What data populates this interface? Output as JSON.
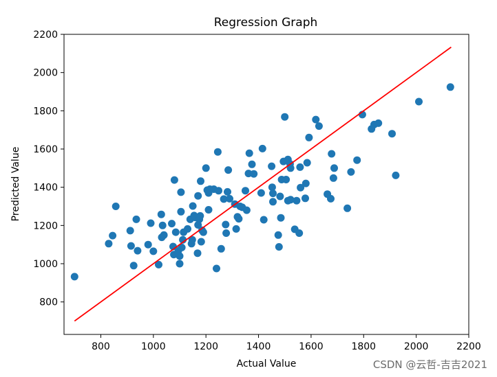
{
  "chart_data": {
    "type": "scatter",
    "title": "Regression Graph",
    "xlabel": "Actual Value",
    "ylabel": "Predicted Value",
    "xlim": [
      660,
      2200
    ],
    "ylim": [
      630,
      2200
    ],
    "xticks": [
      800,
      1000,
      1200,
      1400,
      1600,
      1800,
      2000,
      2200
    ],
    "yticks": [
      800,
      1000,
      1200,
      1400,
      1600,
      1800,
      2000,
      2200
    ],
    "grid": false,
    "point_color": "#1f77b4",
    "line_color": "#ff0000",
    "regression_line": {
      "x": [
        700,
        2133
      ],
      "y": [
        700,
        2133
      ]
    },
    "points": [
      [
        700,
        932
      ],
      [
        830,
        1105
      ],
      [
        845,
        1147
      ],
      [
        857,
        1300
      ],
      [
        912,
        1173
      ],
      [
        915,
        1093
      ],
      [
        925,
        990
      ],
      [
        935,
        1232
      ],
      [
        940,
        1068
      ],
      [
        980,
        1100
      ],
      [
        990,
        1212
      ],
      [
        1000,
        1065
      ],
      [
        1020,
        995
      ],
      [
        1030,
        1258
      ],
      [
        1032,
        1138
      ],
      [
        1035,
        1200
      ],
      [
        1040,
        1150
      ],
      [
        1070,
        1210
      ],
      [
        1075,
        1090
      ],
      [
        1078,
        1048
      ],
      [
        1080,
        1438
      ],
      [
        1085,
        1165
      ],
      [
        1095,
        1068
      ],
      [
        1100,
        1000
      ],
      [
        1100,
        1040
      ],
      [
        1105,
        1272
      ],
      [
        1105,
        1374
      ],
      [
        1108,
        1085
      ],
      [
        1112,
        1125
      ],
      [
        1115,
        1165
      ],
      [
        1130,
        1182
      ],
      [
        1140,
        1232
      ],
      [
        1145,
        1105
      ],
      [
        1148,
        1125
      ],
      [
        1150,
        1302
      ],
      [
        1155,
        1252
      ],
      [
        1160,
        1242
      ],
      [
        1168,
        1055
      ],
      [
        1170,
        1203
      ],
      [
        1170,
        1355
      ],
      [
        1175,
        1232
      ],
      [
        1178,
        1250
      ],
      [
        1180,
        1432
      ],
      [
        1182,
        1115
      ],
      [
        1185,
        1175
      ],
      [
        1190,
        1165
      ],
      [
        1200,
        1500
      ],
      [
        1205,
        1385
      ],
      [
        1210,
        1370
      ],
      [
        1210,
        1282
      ],
      [
        1215,
        1390
      ],
      [
        1230,
        1390
      ],
      [
        1240,
        975
      ],
      [
        1245,
        1585
      ],
      [
        1248,
        1382
      ],
      [
        1258,
        1078
      ],
      [
        1268,
        1338
      ],
      [
        1275,
        1205
      ],
      [
        1277,
        1160
      ],
      [
        1282,
        1376
      ],
      [
        1285,
        1490
      ],
      [
        1290,
        1340
      ],
      [
        1310,
        1312
      ],
      [
        1315,
        1182
      ],
      [
        1320,
        1245
      ],
      [
        1325,
        1235
      ],
      [
        1330,
        1300
      ],
      [
        1338,
        1295
      ],
      [
        1350,
        1382
      ],
      [
        1355,
        1280
      ],
      [
        1362,
        1472
      ],
      [
        1365,
        1578
      ],
      [
        1375,
        1520
      ],
      [
        1382,
        1470
      ],
      [
        1410,
        1370
      ],
      [
        1415,
        1602
      ],
      [
        1420,
        1230
      ],
      [
        1450,
        1510
      ],
      [
        1452,
        1400
      ],
      [
        1455,
        1368
      ],
      [
        1455,
        1324
      ],
      [
        1475,
        1150
      ],
      [
        1478,
        1088
      ],
      [
        1482,
        1352
      ],
      [
        1485,
        1240
      ],
      [
        1488,
        1440
      ],
      [
        1495,
        1535
      ],
      [
        1500,
        1768
      ],
      [
        1505,
        1440
      ],
      [
        1512,
        1330
      ],
      [
        1512,
        1545
      ],
      [
        1520,
        1522
      ],
      [
        1522,
        1500
      ],
      [
        1522,
        1335
      ],
      [
        1538,
        1180
      ],
      [
        1545,
        1330
      ],
      [
        1555,
        1160
      ],
      [
        1558,
        1505
      ],
      [
        1560,
        1398
      ],
      [
        1578,
        1342
      ],
      [
        1580,
        1420
      ],
      [
        1585,
        1528
      ],
      [
        1592,
        1660
      ],
      [
        1618,
        1754
      ],
      [
        1630,
        1720
      ],
      [
        1662,
        1364
      ],
      [
        1675,
        1340
      ],
      [
        1678,
        1575
      ],
      [
        1685,
        1448
      ],
      [
        1688,
        1500
      ],
      [
        1738,
        1290
      ],
      [
        1752,
        1480
      ],
      [
        1775,
        1542
      ],
      [
        1795,
        1780
      ],
      [
        1830,
        1705
      ],
      [
        1840,
        1728
      ],
      [
        1856,
        1735
      ],
      [
        1908,
        1680
      ],
      [
        1922,
        1462
      ],
      [
        2010,
        1848
      ],
      [
        2130,
        1924
      ]
    ]
  },
  "watermark": "CSDN @云哲-吉吉2021"
}
